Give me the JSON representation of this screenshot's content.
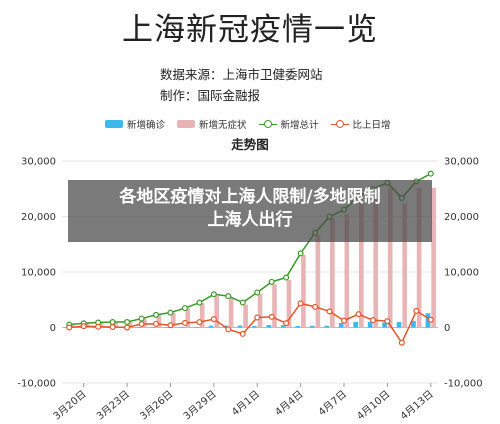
{
  "header": {
    "title": "上海新冠疫情一览",
    "source_line": "数据来源：上海市卫健委网站",
    "author_line": "制作：国际金融报"
  },
  "overlay_caption": {
    "line1": "各地区疫情对上海人限制/多地限制",
    "line2": "上海人出行"
  },
  "colors": {
    "new_confirmed": "#3db8ec",
    "new_asymptomatic": "#e8b4b6",
    "new_total": "#3a9a2a",
    "day_change": "#e8542a"
  },
  "chart_data": {
    "type": "bar",
    "title": "走势图",
    "legend_position": "top",
    "grid": "horizontal",
    "x": [
      "3月19日",
      "3月20日",
      "3月21日",
      "3月22日",
      "3月23日",
      "3月24日",
      "3月25日",
      "3月26日",
      "3月27日",
      "3月28日",
      "3月29日",
      "3月30日",
      "3月31日",
      "4月1日",
      "4月2日",
      "4月3日",
      "4月4日",
      "4月5日",
      "4月6日",
      "4月7日",
      "4月8日",
      "4月9日",
      "4月10日",
      "4月11日",
      "4月12日",
      "4月13日"
    ],
    "x_tick_labels": [
      "3月20日",
      "3月23日",
      "3月26日",
      "3月29日",
      "4月1日",
      "4月4日",
      "4月7日",
      "4月10日",
      "4月13日"
    ],
    "y_left": {
      "min": -10000,
      "max": 30000,
      "ticks": [
        "-10,000",
        "0",
        "10,000",
        "20,000",
        "30,000"
      ]
    },
    "y_right": {
      "min": -10000,
      "max": 30000,
      "ticks": [
        "-10,000",
        "0",
        "10,000",
        "20,000",
        "30,000"
      ]
    },
    "series": [
      {
        "name": "新增确诊",
        "kind": "bar",
        "values": [
          17,
          24,
          31,
          4,
          4,
          29,
          38,
          45,
          50,
          96,
          326,
          355,
          358,
          260,
          438,
          425,
          268,
          311,
          322,
          824,
          1015,
          1006,
          914,
          994,
          1189,
          2573
        ]
      },
      {
        "name": "新增无症状",
        "kind": "bar",
        "values": [
          492,
          734,
          865,
          977,
          979,
          1580,
          2231,
          2631,
          3450,
          4381,
          5656,
          5298,
          4144,
          6051,
          7788,
          8581,
          13086,
          16766,
          19660,
          20398,
          22609,
          23937,
          25173,
          22348,
          25141,
          25146
        ]
      },
      {
        "name": "新增总计",
        "kind": "line",
        "values": [
          509,
          758,
          896,
          981,
          983,
          1609,
          2269,
          2676,
          3500,
          4477,
          5982,
          5653,
          4502,
          6311,
          8226,
          9006,
          13354,
          17077,
          19982,
          21222,
          23624,
          24943,
          26087,
          23342,
          26330,
          27719
        ]
      },
      {
        "name": "比上日增",
        "kind": "line",
        "values": [
          0,
          249,
          138,
          85,
          2,
          626,
          660,
          407,
          824,
          977,
          1505,
          -329,
          -1151,
          1809,
          1915,
          780,
          4348,
          3723,
          2905,
          1240,
          2402,
          1319,
          1144,
          -2745,
          2988,
          1389
        ]
      }
    ]
  }
}
